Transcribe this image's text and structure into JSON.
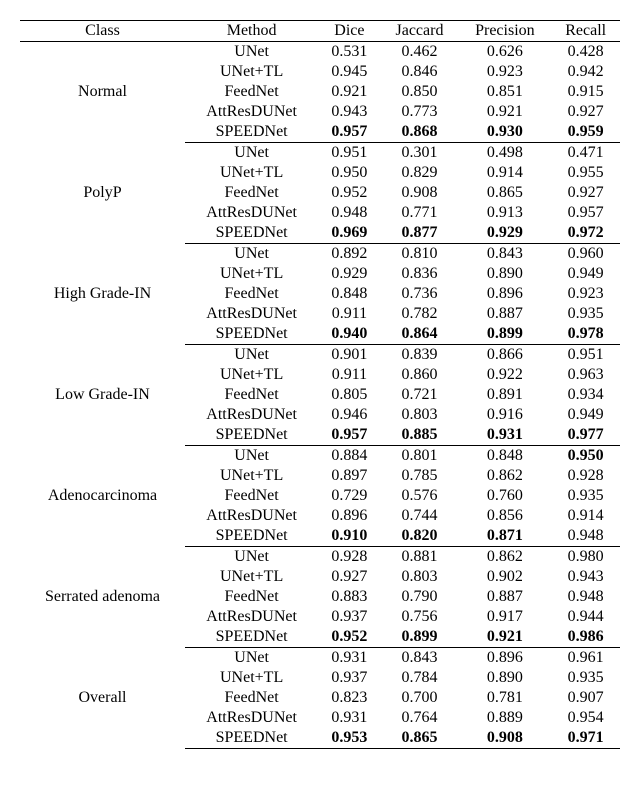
{
  "columns": [
    "Class",
    "Method",
    "Dice",
    "Jaccard",
    "Precision",
    "Recall"
  ],
  "groups": [
    {
      "class": "Normal",
      "rows": [
        {
          "method": "UNet",
          "dice": "0.531",
          "jaccard": "0.462",
          "precision": "0.626",
          "recall": "0.428",
          "bold": []
        },
        {
          "method": "UNet+TL",
          "dice": "0.945",
          "jaccard": "0.846",
          "precision": "0.923",
          "recall": "0.942",
          "bold": []
        },
        {
          "method": "FeedNet",
          "dice": "0.921",
          "jaccard": "0.850",
          "precision": "0.851",
          "recall": "0.915",
          "bold": []
        },
        {
          "method": "AttResDUNet",
          "dice": "0.943",
          "jaccard": "0.773",
          "precision": "0.921",
          "recall": "0.927",
          "bold": []
        },
        {
          "method": "SPEEDNet",
          "dice": "0.957",
          "jaccard": "0.868",
          "precision": "0.930",
          "recall": "0.959",
          "bold": [
            "dice",
            "jaccard",
            "precision",
            "recall"
          ]
        }
      ]
    },
    {
      "class": "PolyP",
      "rows": [
        {
          "method": "UNet",
          "dice": "0.951",
          "jaccard": "0.301",
          "precision": "0.498",
          "recall": "0.471",
          "bold": []
        },
        {
          "method": "UNet+TL",
          "dice": "0.950",
          "jaccard": "0.829",
          "precision": "0.914",
          "recall": "0.955",
          "bold": []
        },
        {
          "method": "FeedNet",
          "dice": "0.952",
          "jaccard": "0.908",
          "precision": "0.865",
          "recall": "0.927",
          "bold": []
        },
        {
          "method": "AttResDUNet",
          "dice": "0.948",
          "jaccard": "0.771",
          "precision": "0.913",
          "recall": "0.957",
          "bold": []
        },
        {
          "method": "SPEEDNet",
          "dice": "0.969",
          "jaccard": "0.877",
          "precision": "0.929",
          "recall": "0.972",
          "bold": [
            "dice",
            "jaccard",
            "precision",
            "recall"
          ]
        }
      ]
    },
    {
      "class": "High Grade-IN",
      "rows": [
        {
          "method": "UNet",
          "dice": "0.892",
          "jaccard": "0.810",
          "precision": "0.843",
          "recall": "0.960",
          "bold": []
        },
        {
          "method": "UNet+TL",
          "dice": "0.929",
          "jaccard": "0.836",
          "precision": "0.890",
          "recall": "0.949",
          "bold": []
        },
        {
          "method": "FeedNet",
          "dice": "0.848",
          "jaccard": "0.736",
          "precision": "0.896",
          "recall": "0.923",
          "bold": []
        },
        {
          "method": "AttResDUNet",
          "dice": "0.911",
          "jaccard": "0.782",
          "precision": "0.887",
          "recall": "0.935",
          "bold": []
        },
        {
          "method": "SPEEDNet",
          "dice": "0.940",
          "jaccard": "0.864",
          "precision": "0.899",
          "recall": "0.978",
          "bold": [
            "dice",
            "jaccard",
            "precision",
            "recall"
          ]
        }
      ]
    },
    {
      "class": "Low Grade-IN",
      "rows": [
        {
          "method": "UNet",
          "dice": "0.901",
          "jaccard": "0.839",
          "precision": "0.866",
          "recall": "0.951",
          "bold": []
        },
        {
          "method": "UNet+TL",
          "dice": "0.911",
          "jaccard": "0.860",
          "precision": "0.922",
          "recall": "0.963",
          "bold": []
        },
        {
          "method": "FeedNet",
          "dice": "0.805",
          "jaccard": "0.721",
          "precision": "0.891",
          "recall": "0.934",
          "bold": []
        },
        {
          "method": "AttResDUNet",
          "dice": "0.946",
          "jaccard": "0.803",
          "precision": "0.916",
          "recall": "0.949",
          "bold": []
        },
        {
          "method": "SPEEDNet",
          "dice": "0.957",
          "jaccard": "0.885",
          "precision": "0.931",
          "recall": "0.977",
          "bold": [
            "dice",
            "jaccard",
            "precision",
            "recall"
          ]
        }
      ]
    },
    {
      "class": "Adenocarcinoma",
      "rows": [
        {
          "method": "UNet",
          "dice": "0.884",
          "jaccard": "0.801",
          "precision": "0.848",
          "recall": "0.950",
          "bold": [
            "recall"
          ]
        },
        {
          "method": "UNet+TL",
          "dice": "0.897",
          "jaccard": "0.785",
          "precision": "0.862",
          "recall": "0.928",
          "bold": []
        },
        {
          "method": "FeedNet",
          "dice": "0.729",
          "jaccard": "0.576",
          "precision": "0.760",
          "recall": "0.935",
          "bold": []
        },
        {
          "method": "AttResDUNet",
          "dice": "0.896",
          "jaccard": "0.744",
          "precision": "0.856",
          "recall": "0.914",
          "bold": []
        },
        {
          "method": "SPEEDNet",
          "dice": "0.910",
          "jaccard": "0.820",
          "precision": "0.871",
          "recall": "0.948",
          "bold": [
            "dice",
            "jaccard",
            "precision"
          ]
        }
      ]
    },
    {
      "class": "Serrated adenoma",
      "rows": [
        {
          "method": "UNet",
          "dice": "0.928",
          "jaccard": "0.881",
          "precision": "0.862",
          "recall": "0.980",
          "bold": []
        },
        {
          "method": "UNet+TL",
          "dice": "0.927",
          "jaccard": "0.803",
          "precision": "0.902",
          "recall": "0.943",
          "bold": []
        },
        {
          "method": "FeedNet",
          "dice": "0.883",
          "jaccard": "0.790",
          "precision": "0.887",
          "recall": "0.948",
          "bold": []
        },
        {
          "method": "AttResDUNet",
          "dice": "0.937",
          "jaccard": "0.756",
          "precision": "0.917",
          "recall": "0.944",
          "bold": []
        },
        {
          "method": "SPEEDNet",
          "dice": "0.952",
          "jaccard": "0.899",
          "precision": "0.921",
          "recall": "0.986",
          "bold": [
            "dice",
            "jaccard",
            "precision",
            "recall"
          ]
        }
      ]
    },
    {
      "class": "Overall",
      "rows": [
        {
          "method": "UNet",
          "dice": "0.931",
          "jaccard": "0.843",
          "precision": "0.896",
          "recall": "0.961",
          "bold": []
        },
        {
          "method": "UNet+TL",
          "dice": "0.937",
          "jaccard": "0.784",
          "precision": "0.890",
          "recall": "0.935",
          "bold": []
        },
        {
          "method": "FeedNet",
          "dice": "0.823",
          "jaccard": "0.700",
          "precision": "0.781",
          "recall": "0.907",
          "bold": []
        },
        {
          "method": "AttResDUNet",
          "dice": "0.931",
          "jaccard": "0.764",
          "precision": "0.889",
          "recall": "0.954",
          "bold": []
        },
        {
          "method": "SPEEDNet",
          "dice": "0.953",
          "jaccard": "0.865",
          "precision": "0.908",
          "recall": "0.971",
          "bold": [
            "dice",
            "jaccard",
            "precision",
            "recall"
          ]
        }
      ]
    }
  ]
}
